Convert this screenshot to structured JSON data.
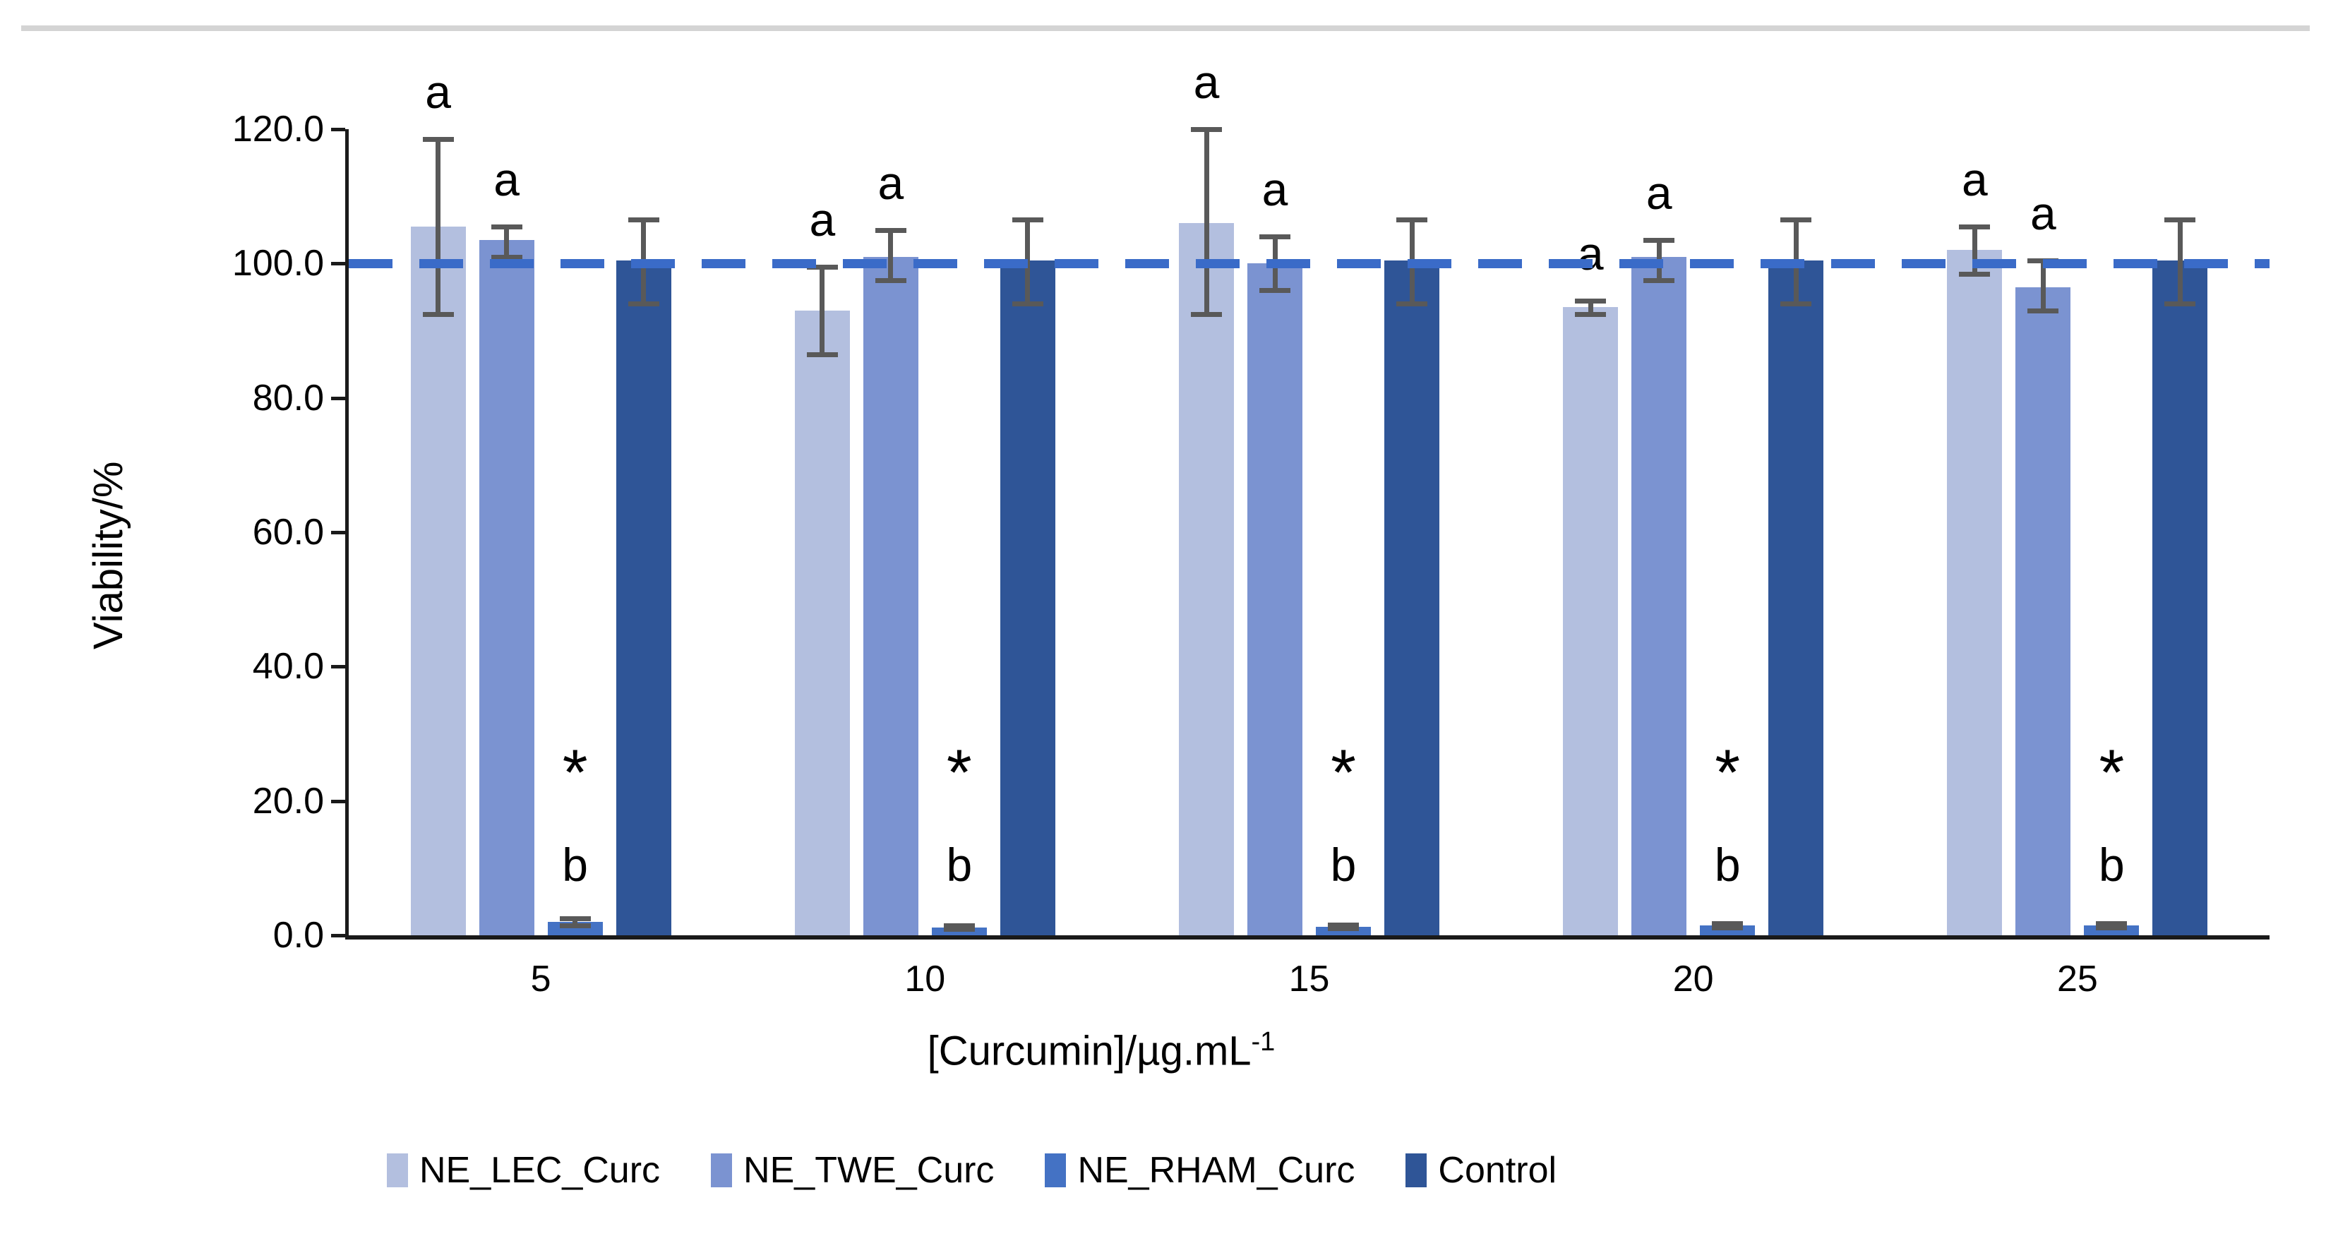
{
  "page": {
    "top_rule_color": "#d4d4d4"
  },
  "chart_data": {
    "type": "bar",
    "title": "",
    "ylabel": "Viability/%",
    "xlabel_main": "[Curcumin]/µg.mL",
    "xlabel_sup": "-1",
    "ylim": [
      0,
      120
    ],
    "ytick_step": 20,
    "yticks": [
      "0.0",
      "20.0",
      "40.0",
      "60.0",
      "80.0",
      "100.0",
      "120.0"
    ],
    "categories": [
      "5",
      "10",
      "15",
      "20",
      "25"
    ],
    "grid": "off",
    "legend_position": "bottom",
    "reference_line": {
      "value": 100,
      "style": "dashed",
      "color": "#3a6bc8"
    },
    "error_bar_color": "#595959",
    "series": [
      {
        "name": "NE_LEC_Curc",
        "color": "#b3bfdf",
        "values": [
          105.5,
          93.0,
          106.0,
          93.5,
          102.0
        ],
        "err_up": [
          13.0,
          6.5,
          14.0,
          1.0,
          3.5
        ],
        "err_down": [
          13.0,
          6.5,
          13.5,
          1.0,
          3.5
        ],
        "annotation": "a"
      },
      {
        "name": "NE_TWE_Curc",
        "color": "#7b93d1",
        "values": [
          103.5,
          101.0,
          100.0,
          101.0,
          96.5
        ],
        "err_up": [
          2.0,
          4.0,
          4.0,
          2.5,
          4.0
        ],
        "err_down": [
          2.5,
          3.5,
          4.0,
          3.5,
          3.5
        ],
        "annotation": "a"
      },
      {
        "name": "NE_RHAM_Curc",
        "color": "#4472c4",
        "values": [
          2.0,
          1.2,
          1.3,
          1.5,
          1.5
        ],
        "err_up": [
          0.5,
          0.3,
          0.3,
          0.3,
          0.3
        ],
        "err_down": [
          0.5,
          0.3,
          0.3,
          0.3,
          0.3
        ],
        "annotation_star": "*",
        "annotation_letter": "b"
      },
      {
        "name": "Control",
        "color": "#2f5597",
        "values": [
          100.5,
          100.5,
          100.5,
          100.5,
          100.5
        ],
        "err_up": [
          6.0,
          6.0,
          6.0,
          6.0,
          6.0
        ],
        "err_down": [
          6.5,
          6.5,
          6.5,
          6.5,
          6.5
        ],
        "annotation": ""
      }
    ],
    "legend": [
      "NE_LEC_Curc",
      "NE_TWE_Curc",
      "NE_RHAM_Curc",
      "Control"
    ]
  }
}
